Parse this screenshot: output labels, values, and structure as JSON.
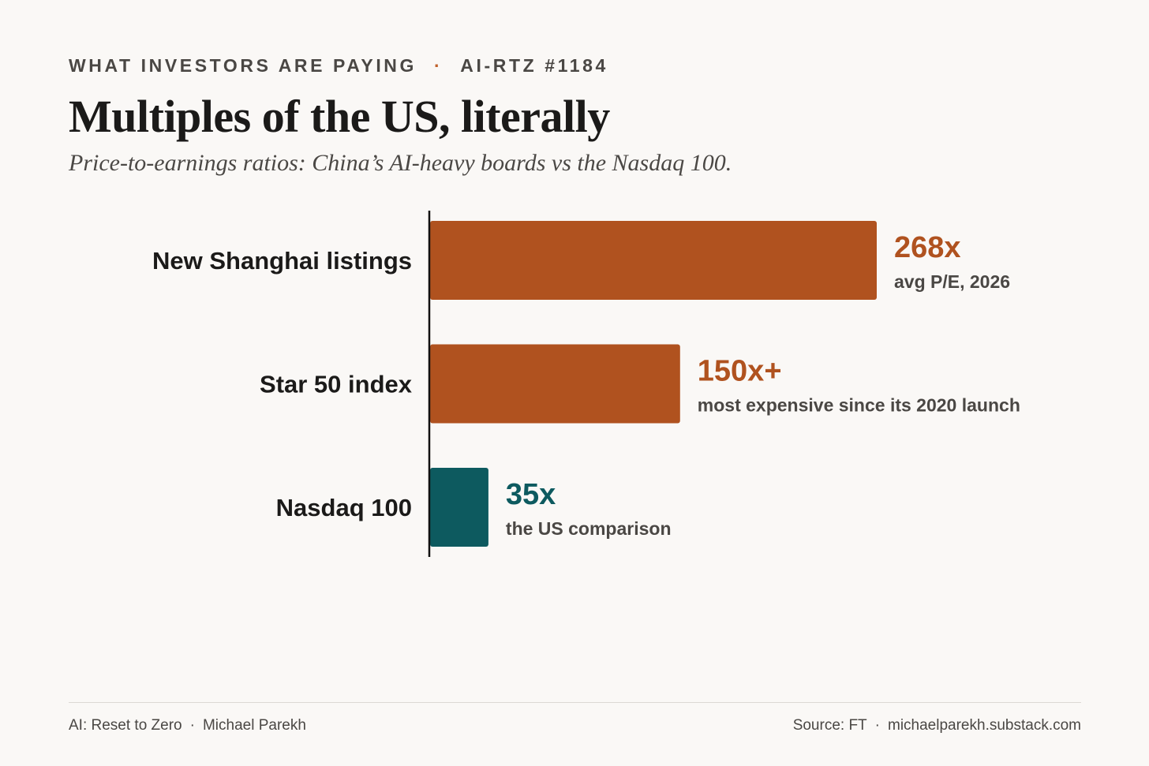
{
  "header": {
    "kicker_left": "WHAT INVESTORS ARE PAYING",
    "kicker_separator": "·",
    "kicker_right": "AI-RTZ #1184",
    "title": "Multiples of the US, literally",
    "subtitle": "Price-to-earnings ratios: China’s AI-heavy boards vs the Nasdaq 100."
  },
  "colors": {
    "china": "#b0521f",
    "us": "#0d5a5f",
    "label": "#1b1a19",
    "note": "#4a4744",
    "accent_dot": "#c0602a"
  },
  "chart_data": {
    "type": "bar",
    "orientation": "horizontal",
    "categories": [
      "New Shanghai listings",
      "Star 50 index",
      "Nasdaq 100"
    ],
    "values": [
      268,
      150,
      35
    ],
    "value_labels": [
      "268x",
      "150x+",
      "35x"
    ],
    "notes": [
      "avg P/E, 2026",
      "most expensive since its 2020 launch",
      "the US comparison"
    ],
    "bar_colors": [
      "#b0521f",
      "#b0521f",
      "#0d5a5f"
    ],
    "xlim": [
      0,
      268
    ],
    "grid": false,
    "legend": "none"
  },
  "footer": {
    "left_publication": "AI: Reset to Zero",
    "left_author": "Michael Parekh",
    "separator": "·",
    "right_source": "Source: FT",
    "right_site": "michaelparekh.substack.com"
  }
}
